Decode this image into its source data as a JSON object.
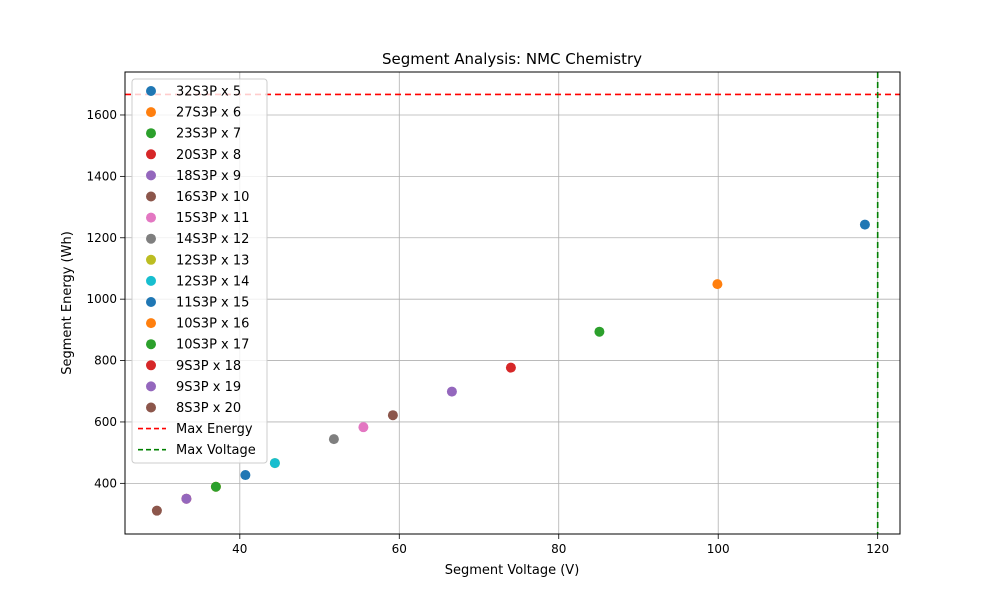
{
  "chart_data": {
    "type": "scatter",
    "title": "Segment Analysis: NMC Chemistry",
    "xlabel": "Segment Voltage (V)",
    "ylabel": "Segment Energy (Wh)",
    "xlim": [
      25.6,
      122.8
    ],
    "ylim": [
      235,
      1740
    ],
    "xticks": [
      40,
      60,
      80,
      100,
      120
    ],
    "yticks": [
      400,
      600,
      800,
      1000,
      1200,
      1400,
      1600
    ],
    "grid": true,
    "legend_position": "upper-left",
    "series": [
      {
        "name": "32S3P x 5",
        "x": 118.4,
        "y": 1243,
        "color": "#1f77b4"
      },
      {
        "name": "27S3P x 6",
        "x": 99.9,
        "y": 1049,
        "color": "#ff7f0e"
      },
      {
        "name": "23S3P x 7",
        "x": 85.1,
        "y": 894,
        "color": "#2ca02c"
      },
      {
        "name": "20S3P x 8",
        "x": 74.0,
        "y": 777,
        "color": "#d62728"
      },
      {
        "name": "18S3P x 9",
        "x": 66.6,
        "y": 699,
        "color": "#9467bd"
      },
      {
        "name": "16S3P x 10",
        "x": 59.2,
        "y": 622,
        "color": "#8c564b"
      },
      {
        "name": "15S3P x 11",
        "x": 55.5,
        "y": 583,
        "color": "#e377c2"
      },
      {
        "name": "14S3P x 12",
        "x": 51.8,
        "y": 544,
        "color": "#7f7f7f"
      },
      {
        "name": "12S3P x 13",
        "x": 44.4,
        "y": 466,
        "color": "#bcbd22"
      },
      {
        "name": "12S3P x 14",
        "x": 44.4,
        "y": 466,
        "color": "#17becf"
      },
      {
        "name": "11S3P x 15",
        "x": 40.7,
        "y": 427,
        "color": "#1f77b4"
      },
      {
        "name": "10S3P x 16",
        "x": 37.0,
        "y": 389,
        "color": "#ff7f0e"
      },
      {
        "name": "10S3P x 17",
        "x": 37.0,
        "y": 389,
        "color": "#2ca02c"
      },
      {
        "name": "9S3P x 18",
        "x": 33.3,
        "y": 350,
        "color": "#d62728"
      },
      {
        "name": "9S3P x 19",
        "x": 33.3,
        "y": 350,
        "color": "#9467bd"
      },
      {
        "name": "8S3P x 20",
        "x": 29.6,
        "y": 311,
        "color": "#8c564b"
      }
    ],
    "reference_lines": [
      {
        "name": "Max Energy",
        "orientation": "horizontal",
        "value": 1667,
        "color": "#ff0000"
      },
      {
        "name": "Max Voltage",
        "orientation": "vertical",
        "value": 120,
        "color": "#008000"
      }
    ]
  }
}
